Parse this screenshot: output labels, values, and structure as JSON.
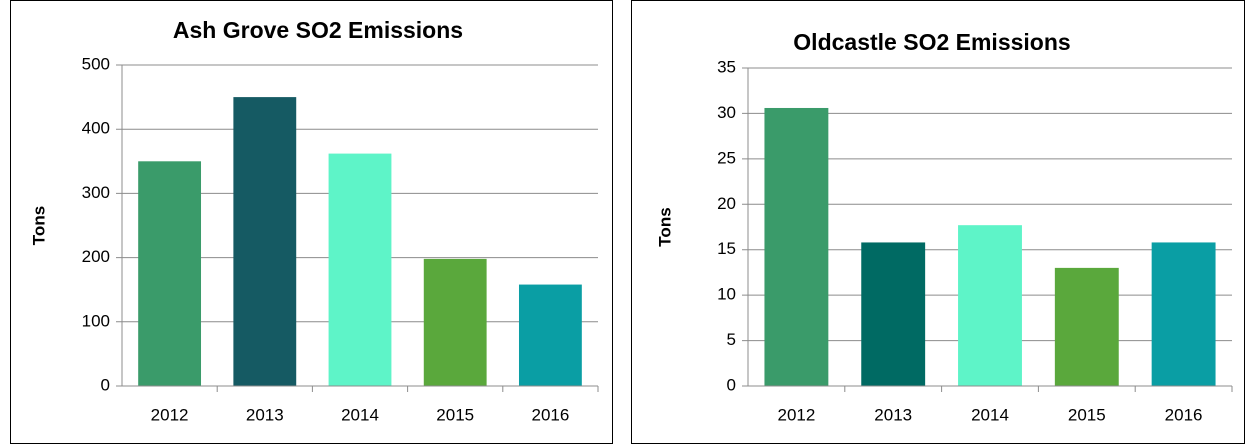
{
  "chart_data": [
    {
      "type": "bar",
      "title": "Ash Grove SO2 Emissions",
      "y_label": "Tons",
      "categories": [
        "2012",
        "2013",
        "2014",
        "2015",
        "2016"
      ],
      "values": [
        350,
        450,
        362,
        198,
        158
      ],
      "colors": [
        "#3a9b6a",
        "#155a63",
        "#5ef4c8",
        "#5aa83c",
        "#0a9ea4"
      ],
      "ylim": [
        0,
        500
      ],
      "yticks": [
        0,
        100,
        200,
        300,
        400,
        500
      ],
      "grid": true
    },
    {
      "type": "bar",
      "title": "Oldcastle SO2 Emissions",
      "y_label": "Tons",
      "categories": [
        "2012",
        "2013",
        "2014",
        "2015",
        "2016"
      ],
      "values": [
        30.6,
        15.8,
        17.7,
        13.0,
        15.8
      ],
      "colors": [
        "#3a9b6a",
        "#006a63",
        "#5ef4c8",
        "#5aa83c",
        "#0a9ea4"
      ],
      "ylim": [
        0,
        35
      ],
      "yticks": [
        0,
        5,
        10,
        15,
        20,
        25,
        30,
        35
      ],
      "grid": true
    }
  ]
}
